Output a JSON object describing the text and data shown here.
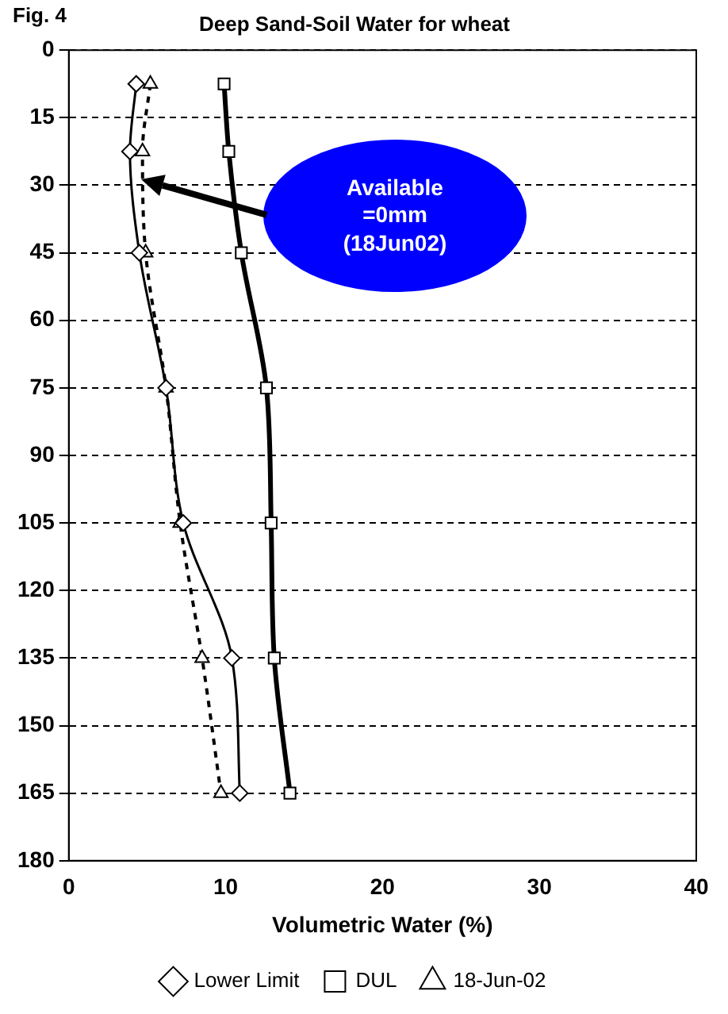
{
  "chart_data": {
    "type": "line",
    "title": "Deep Sand-Soil Water for wheat",
    "xlabel": "Volumetric Water (%)",
    "annotations": [
      "Fig. 4",
      "Available =0mm (18Jun02)"
    ],
    "xlim": [
      0,
      40
    ],
    "xticks": [
      0,
      10,
      20,
      30,
      40
    ],
    "ylim": [
      180,
      0
    ],
    "yticks": [
      0,
      15,
      30,
      45,
      60,
      75,
      90,
      105,
      120,
      135,
      150,
      165,
      180
    ],
    "grid": "y",
    "legend": "bottom",
    "series": [
      {
        "name": "Lower Limit",
        "color": "#000000",
        "marker": "diamond",
        "line_style": "solid",
        "x": [
          4.3,
          3.9,
          4.5,
          6.2,
          7.3,
          10.4,
          10.9
        ],
        "values": [
          7.5,
          22.5,
          45,
          75,
          105,
          135,
          165
        ]
      },
      {
        "name": "DUL",
        "color": "#000000",
        "marker": "square",
        "line_style": "solid",
        "x": [
          9.9,
          10.2,
          11.0,
          12.6,
          12.9,
          13.1,
          14.1
        ],
        "values": [
          7.5,
          22.5,
          45,
          75,
          105,
          135,
          165
        ]
      },
      {
        "name": "18-Jun-02",
        "color": "#000000",
        "marker": "triangle",
        "line_style": "dashed",
        "x": [
          5.2,
          4.7,
          4.9,
          6.2,
          7.1,
          8.5,
          9.7
        ],
        "values": [
          7.5,
          22.5,
          45,
          75,
          105,
          135,
          165
        ]
      }
    ]
  }
}
